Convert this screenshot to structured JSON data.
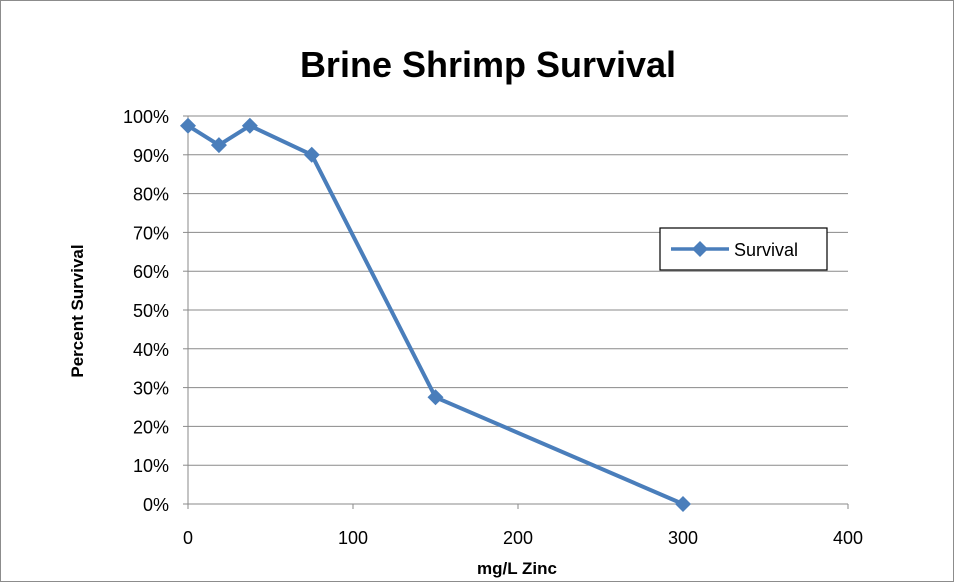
{
  "chart_data": {
    "type": "line",
    "title": "Brine Shrimp Survival",
    "xlabel": "mg/L Zinc",
    "ylabel": "Percent Survival",
    "xlim": [
      0,
      400
    ],
    "ylim": [
      0,
      1
    ],
    "x_ticks": [
      0,
      100,
      200,
      300,
      400
    ],
    "y_ticks": [
      0,
      0.1,
      0.2,
      0.3,
      0.4,
      0.5,
      0.6,
      0.7,
      0.8,
      0.9,
      1.0
    ],
    "y_tick_labels": [
      "0%",
      "10%",
      "20%",
      "30%",
      "40%",
      "50%",
      "60%",
      "70%",
      "80%",
      "90%",
      "100%"
    ],
    "x_tick_labels": [
      "0",
      "100",
      "200",
      "300",
      "400"
    ],
    "grid": "horizontal",
    "legend_position": "right",
    "series": [
      {
        "name": "Survival",
        "color": "#4a7ebb",
        "marker": "diamond",
        "x": [
          0,
          18.75,
          37.5,
          75,
          150,
          300
        ],
        "y": [
          0.975,
          0.925,
          0.975,
          0.9,
          0.275,
          0.0
        ]
      }
    ]
  }
}
